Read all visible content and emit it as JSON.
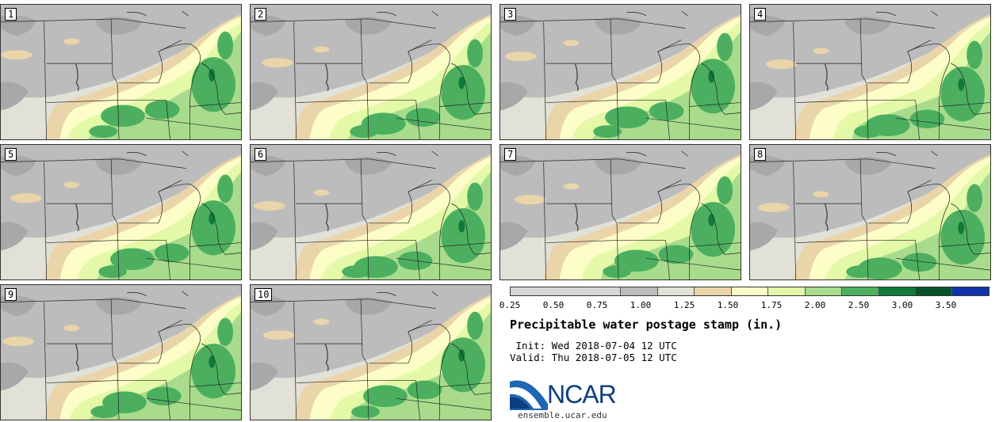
{
  "panels": [
    {
      "label": "1"
    },
    {
      "label": "2"
    },
    {
      "label": "3"
    },
    {
      "label": "4"
    },
    {
      "label": "5"
    },
    {
      "label": "6"
    },
    {
      "label": "7"
    },
    {
      "label": "8"
    },
    {
      "label": "9"
    },
    {
      "label": "10"
    }
  ],
  "colorbar": {
    "colors": [
      "#d6d6d6",
      "#bcbcbc",
      "#e1e1d8",
      "#e9d5a9",
      "#fdfdc8",
      "#e3f9a8",
      "#a8dc8c",
      "#4caf60",
      "#0f7a3a",
      "#07522a",
      "#1133aa"
    ],
    "ticks": [
      "0.25",
      "0.50",
      "0.75",
      "1.00",
      "1.25",
      "1.50",
      "1.75",
      "2.00",
      "2.50",
      "3.00",
      "3.50"
    ]
  },
  "title": "Precipitable water postage stamp (in.)",
  "init": " Init: Wed 2018-07-04 12 UTC",
  "valid": "Valid: Thu 2018-07-05 12 UTC",
  "logo": {
    "name": "NCAR",
    "url": "ensemble.ucar.edu"
  },
  "map_colors": {
    "land_low": "#e1e1d8",
    "gray": "#bcbcbc",
    "dark_gray": "#a8a8a8",
    "tan": "#e9d5a9",
    "pale_yellow": "#fdfdc8",
    "light_green": "#e3f9a8",
    "mid_green": "#a8dc8c",
    "green": "#4caf60",
    "dark_green": "#0f7a3a"
  }
}
